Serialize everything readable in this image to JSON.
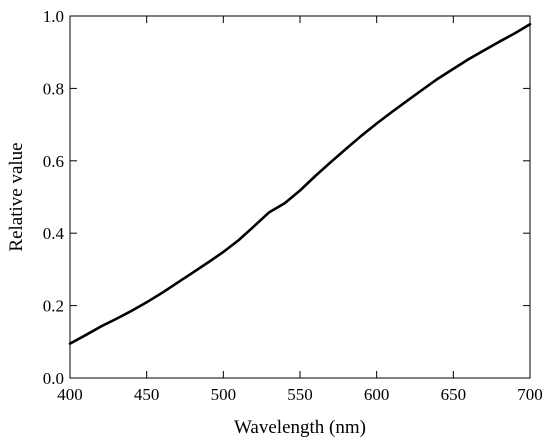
{
  "chart_data": {
    "type": "line",
    "title": "",
    "xlabel": "Wavelength (nm)",
    "ylabel": "Relative value",
    "xlim": [
      400,
      700
    ],
    "ylim": [
      0.0,
      1.0
    ],
    "xticks": [
      400,
      450,
      500,
      550,
      600,
      650,
      700
    ],
    "xtick_labels": [
      "400",
      "450",
      "500",
      "550",
      "600",
      "650",
      "700"
    ],
    "yticks": [
      0.0,
      0.2,
      0.4,
      0.6,
      0.8,
      1.0
    ],
    "ytick_labels": [
      "0.0",
      "0.2",
      "0.4",
      "0.6",
      "0.8",
      "1.0"
    ],
    "grid": false,
    "line_color": "#000000",
    "series": [
      {
        "x": [
          400,
          410,
          420,
          430,
          440,
          450,
          460,
          470,
          480,
          490,
          500,
          510,
          520,
          530,
          540,
          550,
          560,
          570,
          580,
          590,
          600,
          610,
          620,
          630,
          640,
          650,
          660,
          670,
          680,
          690,
          700
        ],
        "values": [
          0.095,
          0.118,
          0.142,
          0.163,
          0.185,
          0.209,
          0.235,
          0.263,
          0.291,
          0.319,
          0.348,
          0.381,
          0.419,
          0.458,
          0.483,
          0.518,
          0.558,
          0.596,
          0.633,
          0.669,
          0.703,
          0.735,
          0.766,
          0.797,
          0.827,
          0.854,
          0.881,
          0.905,
          0.929,
          0.952,
          0.977
        ]
      }
    ]
  }
}
